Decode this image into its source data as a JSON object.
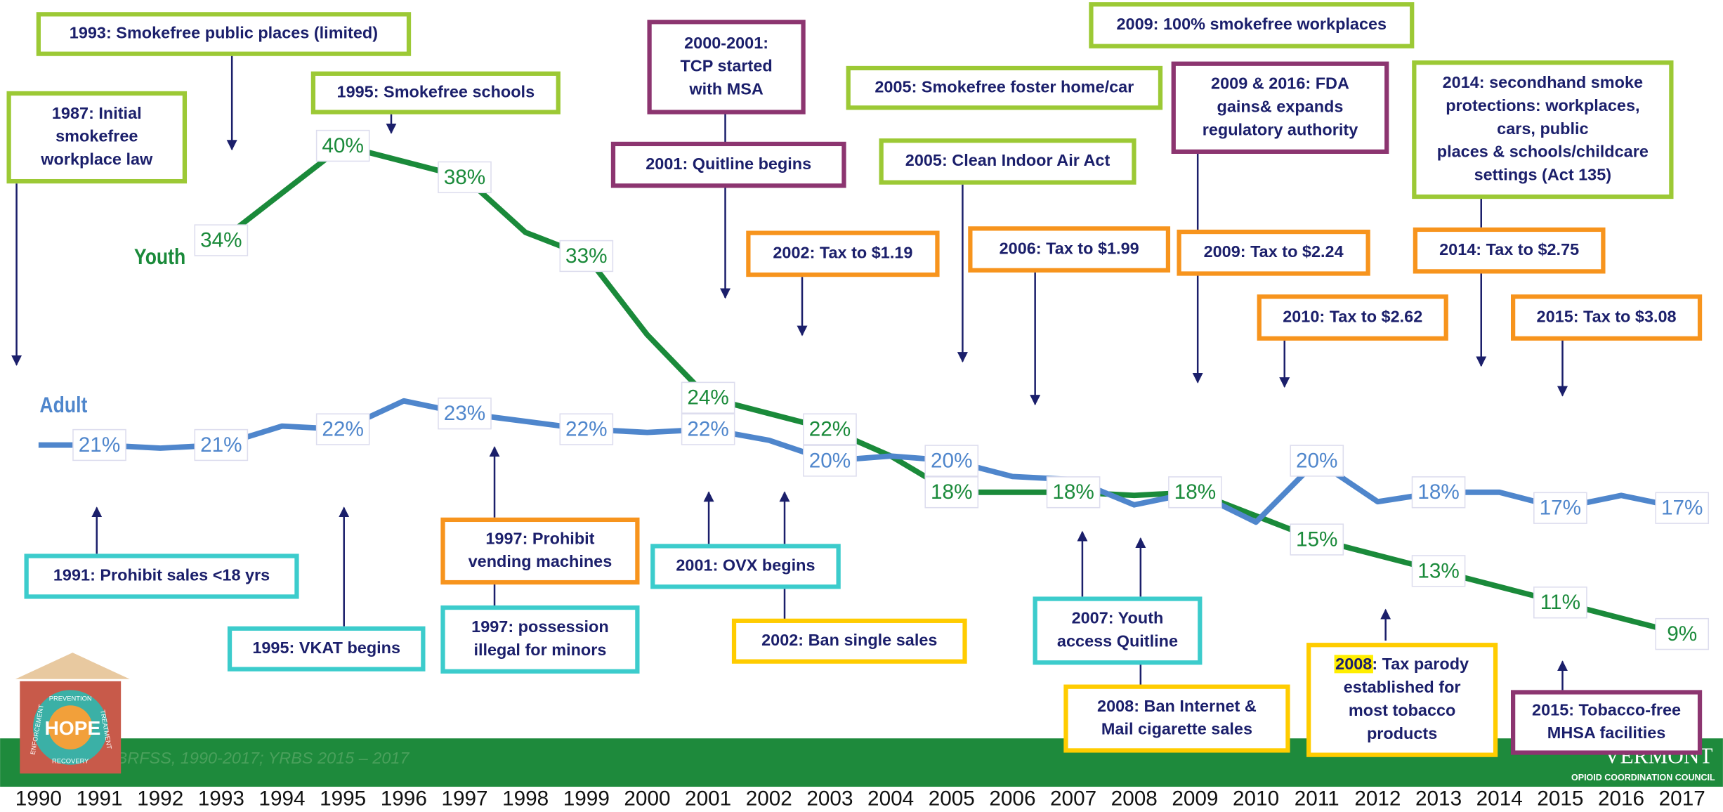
{
  "chart_data": {
    "type": "line",
    "x": [
      "1990",
      "1991",
      "1992",
      "1993",
      "1994",
      "1995",
      "1996",
      "1997",
      "1998",
      "1999",
      "2000",
      "2001",
      "2002",
      "2003",
      "2004",
      "2005",
      "2006",
      "2007",
      "2008",
      "2009",
      "2010",
      "2011",
      "2012",
      "2013",
      "2014",
      "2015",
      "2016",
      "2017"
    ],
    "ylim": [
      0,
      45
    ],
    "series": [
      {
        "name": "Youth",
        "color": "#1a8a3a",
        "values": [
          null,
          null,
          null,
          34,
          37,
          40,
          39,
          38,
          34.5,
          33,
          28,
          24,
          23,
          22,
          20.3,
          18,
          18,
          18,
          17.8,
          18,
          16.5,
          15,
          14,
          13,
          12,
          11,
          10,
          9
        ],
        "value_labels": [
          null,
          null,
          null,
          "34%",
          null,
          "40%",
          null,
          "38%",
          null,
          "33%",
          null,
          "24%",
          null,
          "22%",
          null,
          "18%",
          null,
          "18%",
          null,
          "18%",
          null,
          "15%",
          null,
          "13%",
          null,
          "11%",
          null,
          "9%"
        ]
      },
      {
        "name": "Adult",
        "color": "#4f86cc",
        "values": [
          21,
          21,
          20.8,
          21,
          22.2,
          22,
          23.8,
          23,
          22.5,
          22,
          21.8,
          22,
          21.3,
          20,
          20.3,
          20,
          19,
          18.8,
          17.2,
          18,
          16.1,
          20,
          17.4,
          18,
          18,
          17,
          17.8,
          17
        ],
        "value_labels": [
          null,
          "21%",
          null,
          "21%",
          null,
          "22%",
          null,
          "23%",
          null,
          "22%",
          null,
          "22%",
          null,
          "20%",
          null,
          "20%",
          null,
          null,
          null,
          null,
          null,
          "20%",
          null,
          "18%",
          null,
          "17%",
          null,
          "17%"
        ]
      }
    ],
    "annotations": [
      {
        "lines": [
          "1987: Initial",
          "smokefree",
          "workplace law"
        ],
        "color": "#9cc935"
      },
      {
        "lines": [
          "1993: Smokefree public places (limited)"
        ],
        "color": "#9cc935"
      },
      {
        "lines": [
          "1995: Smokefree schools"
        ],
        "color": "#9cc935"
      },
      {
        "lines": [
          "2000-2001:",
          "TCP started",
          "with MSA"
        ],
        "color": "#8c3570"
      },
      {
        "lines": [
          "2001: Quitline begins"
        ],
        "color": "#8c3570"
      },
      {
        "lines": [
          "2005: Smokefree foster home/car"
        ],
        "color": "#9cc935"
      },
      {
        "lines": [
          "2005: Clean Indoor Air Act"
        ],
        "color": "#9cc935"
      },
      {
        "lines": [
          "2009: 100% smokefree workplaces"
        ],
        "color": "#9cc935"
      },
      {
        "lines": [
          "2009 & 2016: FDA",
          "gains& expands",
          "regulatory authority"
        ],
        "color": "#8c3570"
      },
      {
        "lines": [
          "2014: secondhand smoke",
          "protections: workplaces,",
          "cars, public",
          "places & schools/childcare",
          "settings (Act 135)"
        ],
        "color": "#9cc935"
      },
      {
        "lines": [
          "2002: Tax to $1.19"
        ],
        "color": "#f7941d"
      },
      {
        "lines": [
          "2006: Tax to $1.99"
        ],
        "color": "#f7941d"
      },
      {
        "lines": [
          "2009: Tax to $2.24"
        ],
        "color": "#f7941d"
      },
      {
        "lines": [
          "2014: Tax to $2.75"
        ],
        "color": "#f7941d"
      },
      {
        "lines": [
          "2010: Tax to $2.62"
        ],
        "color": "#f7941d"
      },
      {
        "lines": [
          "2015: Tax to $3.08"
        ],
        "color": "#f7941d"
      },
      {
        "lines": [
          "1991: Prohibit sales <18 yrs"
        ],
        "color": "#3ccccc"
      },
      {
        "lines": [
          "1995: VKAT begins"
        ],
        "color": "#3ccccc"
      },
      {
        "lines": [
          "1997: Prohibit",
          "vending machines"
        ],
        "color": "#f7941d"
      },
      {
        "lines": [
          "1997: possession",
          "illegal for minors"
        ],
        "color": "#3ccccc"
      },
      {
        "lines": [
          "2001: OVX begins"
        ],
        "color": "#3ccccc"
      },
      {
        "lines": [
          "2002: Ban single sales"
        ],
        "color": "#ffcc00"
      },
      {
        "lines": [
          "2007: Youth",
          "access Quitline"
        ],
        "color": "#3ccccc"
      },
      {
        "lines": [
          "2008: Ban Internet &",
          "Mail cigarette sales"
        ],
        "color": "#ffcc00"
      },
      {
        "highlight": "2008",
        "lines": [
          ": Tax parody",
          "established for",
          "most tobacco",
          "products"
        ],
        "color": "#ffcc00"
      },
      {
        "lines": [
          "2015: Tobacco-free",
          "MHSA facilities"
        ],
        "color": "#8c3570"
      }
    ],
    "source": "Source: BRFSS, 1990-2017; YRBS 2015 – 2017",
    "logos": {
      "hope": "HOPE",
      "hope_words": [
        "PREVENTION",
        "ENFORCEMENT",
        "TREATMENT",
        "RECOVERY"
      ],
      "vermont": "VERMONT",
      "council": "OPIOID COORDINATION COUNCIL"
    }
  }
}
